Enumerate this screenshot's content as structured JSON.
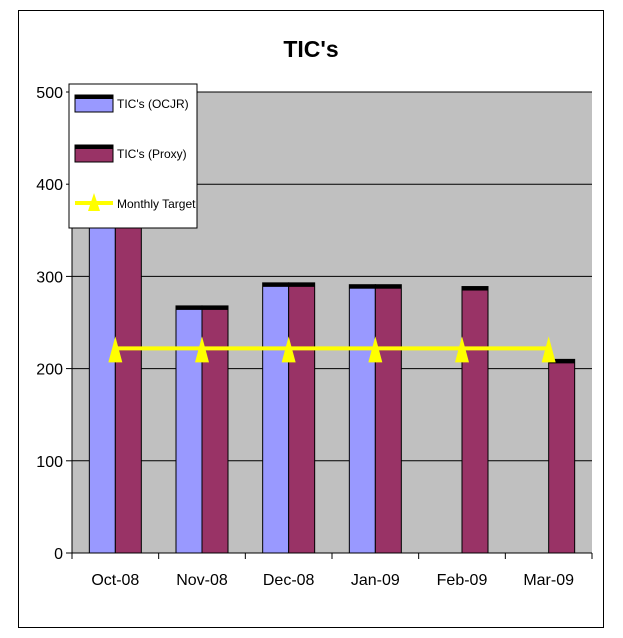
{
  "chart_data": {
    "type": "bar",
    "title": "TIC's",
    "xlabel": "",
    "ylabel": "",
    "categories": [
      "Oct-08",
      "Nov-08",
      "Dec-08",
      "Jan-09",
      "Feb-09",
      "Mar-09"
    ],
    "series": [
      {
        "name": "TIC's (OCJR)",
        "type": "bar",
        "color": "#9999ff",
        "values": [
          400,
          268,
          293,
          291,
          null,
          null
        ]
      },
      {
        "name": "TIC's (Proxy)",
        "type": "bar",
        "color": "#993366",
        "values": [
          400,
          268,
          293,
          291,
          289,
          210
        ]
      },
      {
        "name": "Monthly Target",
        "type": "line",
        "color": "#ffff00",
        "values": [
          222,
          222,
          222,
          222,
          222,
          222
        ]
      }
    ],
    "ylim": [
      0,
      500
    ],
    "yticks": [
      0,
      100,
      200,
      300,
      400,
      500
    ],
    "grid": true,
    "plot_background": "#c0c0c0",
    "legend_position": "top-left"
  }
}
